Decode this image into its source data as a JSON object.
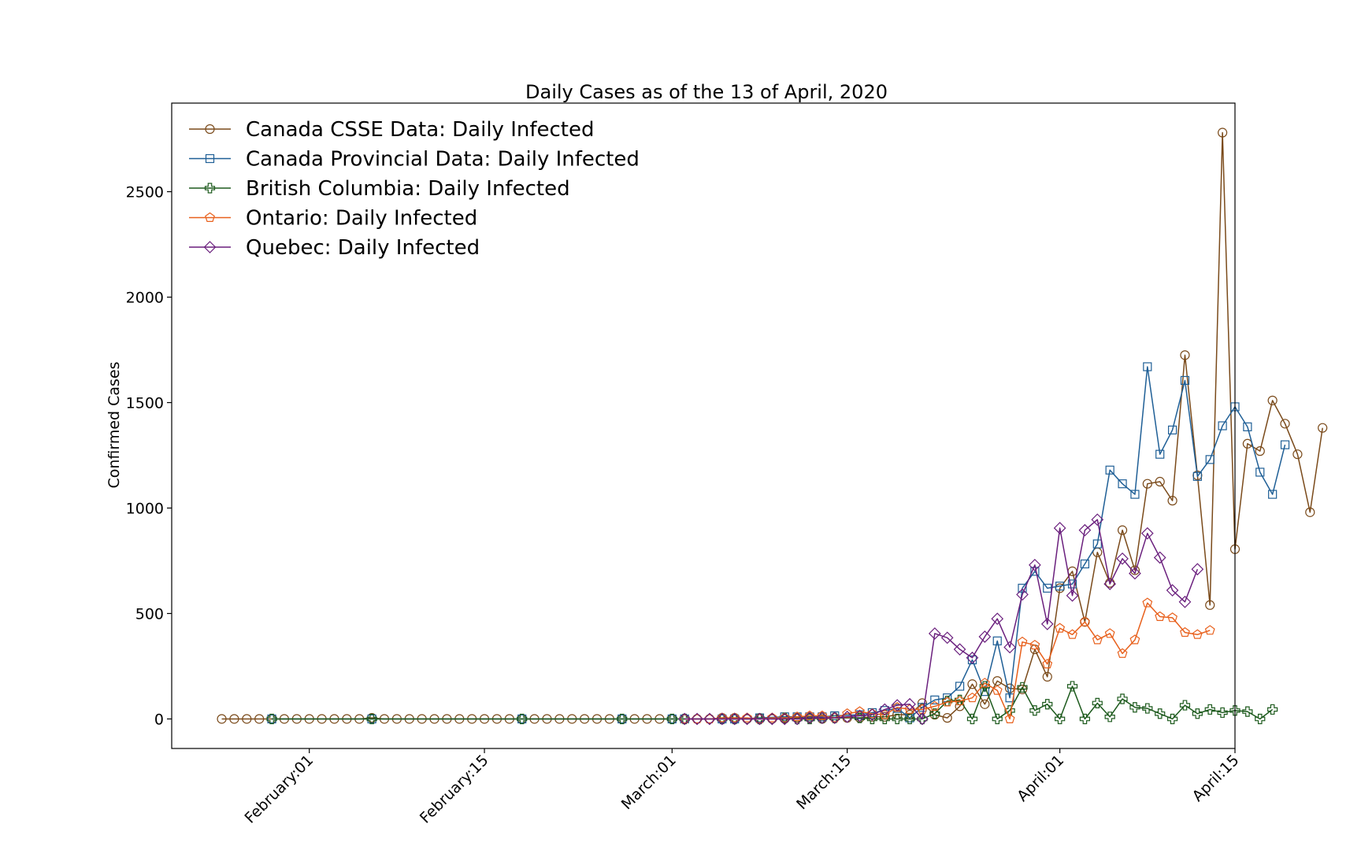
{
  "chart_data": {
    "type": "line",
    "title": "Daily Cases as of the 13 of April, 2020",
    "xlabel": "",
    "ylabel": "Confirmed Cases",
    "x_start": "2020-01-25",
    "x_end": "2020-04-13",
    "xlim": [
      "2020-01-21",
      "2020-04-15"
    ],
    "ylim": [
      -140,
      2920
    ],
    "x_ticks": [
      {
        "date": "2020-02-01",
        "label": "February:01"
      },
      {
        "date": "2020-02-15",
        "label": "February:15"
      },
      {
        "date": "2020-03-01",
        "label": "March:01"
      },
      {
        "date": "2020-03-15",
        "label": "March:15"
      },
      {
        "date": "2020-04-01",
        "label": "April:01"
      },
      {
        "date": "2020-04-15",
        "label": "April:15"
      }
    ],
    "y_ticks": [
      0,
      500,
      1000,
      1500,
      2000,
      2500
    ],
    "grid": false,
    "legend_position": "top-left",
    "series": [
      {
        "name": "Canada CSSE Data: Daily Infected",
        "color": "#7a4a1a",
        "marker": "circle",
        "start": "2020-01-25",
        "values": [
          0,
          0,
          0,
          0,
          0,
          0,
          0,
          0,
          0,
          0,
          0,
          0,
          5,
          0,
          0,
          0,
          0,
          0,
          0,
          0,
          0,
          0,
          0,
          0,
          0,
          0,
          0,
          0,
          0,
          0,
          0,
          0,
          0,
          0,
          0,
          0,
          0,
          0,
          0,
          0,
          5,
          5,
          0,
          5,
          0,
          0,
          5,
          5,
          0,
          5,
          5,
          5,
          10,
          10,
          20,
          20,
          75,
          20,
          5,
          60,
          165,
          70,
          180,
          145,
          140,
          330,
          200,
          620,
          700,
          460,
          790,
          645,
          895,
          705,
          1115,
          1125,
          1035,
          1725,
          1155,
          540,
          2780,
          805,
          1305,
          1270,
          1510,
          1400,
          1255,
          980,
          1380
        ]
      },
      {
        "name": "Canada Provincial Data: Daily Infected",
        "color": "#1f5f96",
        "marker": "square",
        "start": "2020-01-25",
        "values": [
          null,
          null,
          null,
          null,
          0,
          null,
          null,
          null,
          null,
          null,
          null,
          null,
          0,
          null,
          null,
          null,
          null,
          null,
          null,
          null,
          null,
          null,
          null,
          null,
          0,
          null,
          null,
          null,
          null,
          null,
          null,
          null,
          0,
          null,
          null,
          null,
          0,
          0,
          null,
          null,
          0,
          0,
          null,
          5,
          null,
          10,
          10,
          10,
          10,
          15,
          null,
          20,
          30,
          40,
          50,
          5,
          55,
          90,
          100,
          155,
          280,
          130,
          370,
          100,
          620,
          700,
          620,
          630,
          640,
          735,
          830,
          1180,
          1115,
          1065,
          1670,
          1255,
          1370,
          1605,
          1150,
          1230,
          1390,
          1480,
          1385,
          1170,
          1065,
          1300
        ]
      },
      {
        "name": "British Columbia: Daily Infected",
        "color": "#1d5a1d",
        "marker": "plus",
        "start": "2020-01-25",
        "values": [
          null,
          null,
          null,
          null,
          0,
          null,
          null,
          null,
          null,
          null,
          null,
          null,
          0,
          null,
          null,
          null,
          null,
          null,
          null,
          null,
          null,
          null,
          null,
          null,
          0,
          null,
          null,
          null,
          null,
          null,
          null,
          null,
          0,
          null,
          null,
          null,
          0,
          0,
          null,
          null,
          0,
          0,
          null,
          0,
          null,
          5,
          0,
          0,
          5,
          5,
          null,
          5,
          0,
          0,
          0,
          0,
          0,
          25,
          85,
          90,
          0,
          155,
          0,
          40,
          150,
          40,
          70,
          0,
          155,
          0,
          75,
          10,
          95,
          55,
          50,
          25,
          0,
          65,
          25,
          45,
          30,
          40,
          35,
          0,
          45
        ]
      },
      {
        "name": "Ontario: Daily Infected",
        "color": "#e8601c",
        "marker": "pentagon",
        "start": "2020-03-02",
        "values": [
          0,
          0,
          0,
          5,
          5,
          5,
          0,
          5,
          5,
          10,
          15,
          15,
          5,
          25,
          35,
          25,
          20,
          55,
          45,
          45,
          60,
          80,
          85,
          100,
          170,
          135,
          0,
          365,
          350,
          260,
          430,
          400,
          460,
          375,
          405,
          310,
          375,
          550,
          485,
          480,
          410,
          400,
          420
        ]
      },
      {
        "name": "Quebec: Daily Infected",
        "color": "#6a1f7d",
        "marker": "diamond",
        "start": "2020-03-02",
        "values": [
          0,
          0,
          0,
          0,
          0,
          0,
          0,
          0,
          0,
          0,
          5,
          5,
          5,
          10,
          15,
          20,
          45,
          65,
          70,
          0,
          405,
          385,
          330,
          290,
          390,
          475,
          340,
          590,
          730,
          450,
          905,
          585,
          895,
          945,
          640,
          760,
          690,
          880,
          765,
          610,
          555,
          710
        ]
      }
    ]
  }
}
